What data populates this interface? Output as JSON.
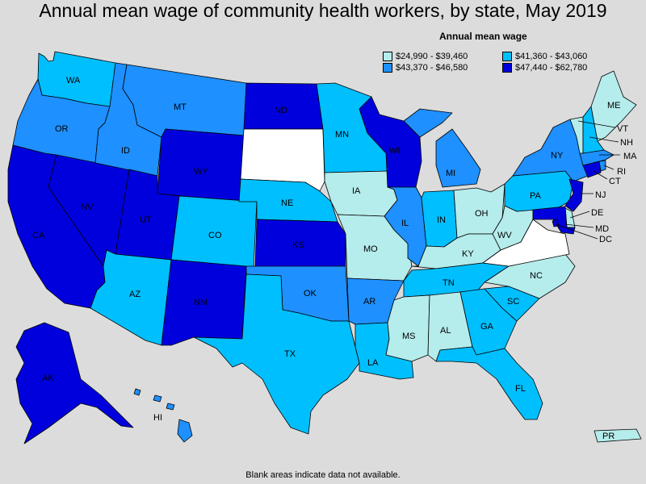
{
  "title": "Annual mean wage of community health workers, by state, May 2019",
  "legend": {
    "title": "Annual mean wage",
    "items": [
      {
        "label": "$24,990 - $39,460",
        "color": "#b5ecec"
      },
      {
        "label": "$41,360 - $43,060",
        "color": "#00bfff"
      },
      {
        "label": "$43,370 - $46,580",
        "color": "#1e90ff"
      },
      {
        "label": "$47,440 - $62,780",
        "color": "#0000dd"
      }
    ]
  },
  "colors": {
    "na": "#ffffff",
    "c1": "#b5ecec",
    "c2": "#00bfff",
    "c3": "#1e90ff",
    "c4": "#0000dd"
  },
  "footnote": "Blank areas indicate data not available.",
  "states": {
    "WA": "c2",
    "OR": "c3",
    "CA": "c4",
    "NV": "c4",
    "ID": "c3",
    "MT": "c3",
    "WY": "c4",
    "UT": "c4",
    "AZ": "c2",
    "CO": "c2",
    "NM": "c4",
    "ND": "c4",
    "SD": "na",
    "NE": "c2",
    "KS": "c4",
    "OK": "c3",
    "TX": "c2",
    "MN": "c2",
    "IA": "c1",
    "MO": "c1",
    "AR": "c3",
    "LA": "c2",
    "WI": "c4",
    "IL": "c3",
    "MI": "c3",
    "IN": "c2",
    "OH": "c1",
    "KY": "c1",
    "TN": "c2",
    "MS": "c1",
    "AL": "c1",
    "GA": "c2",
    "FL": "c2",
    "SC": "c2",
    "NC": "c1",
    "VA": "na",
    "WV": "c1",
    "PA": "c2",
    "NY": "c3",
    "NJ": "c4",
    "DE": "c1",
    "MD": "c4",
    "DC": "c4",
    "CT": "c4",
    "RI": "c3",
    "MA": "c3",
    "VT": "c1",
    "NH": "c2",
    "ME": "c1",
    "AK": "c4",
    "HI": "c3",
    "PR": "c1"
  }
}
